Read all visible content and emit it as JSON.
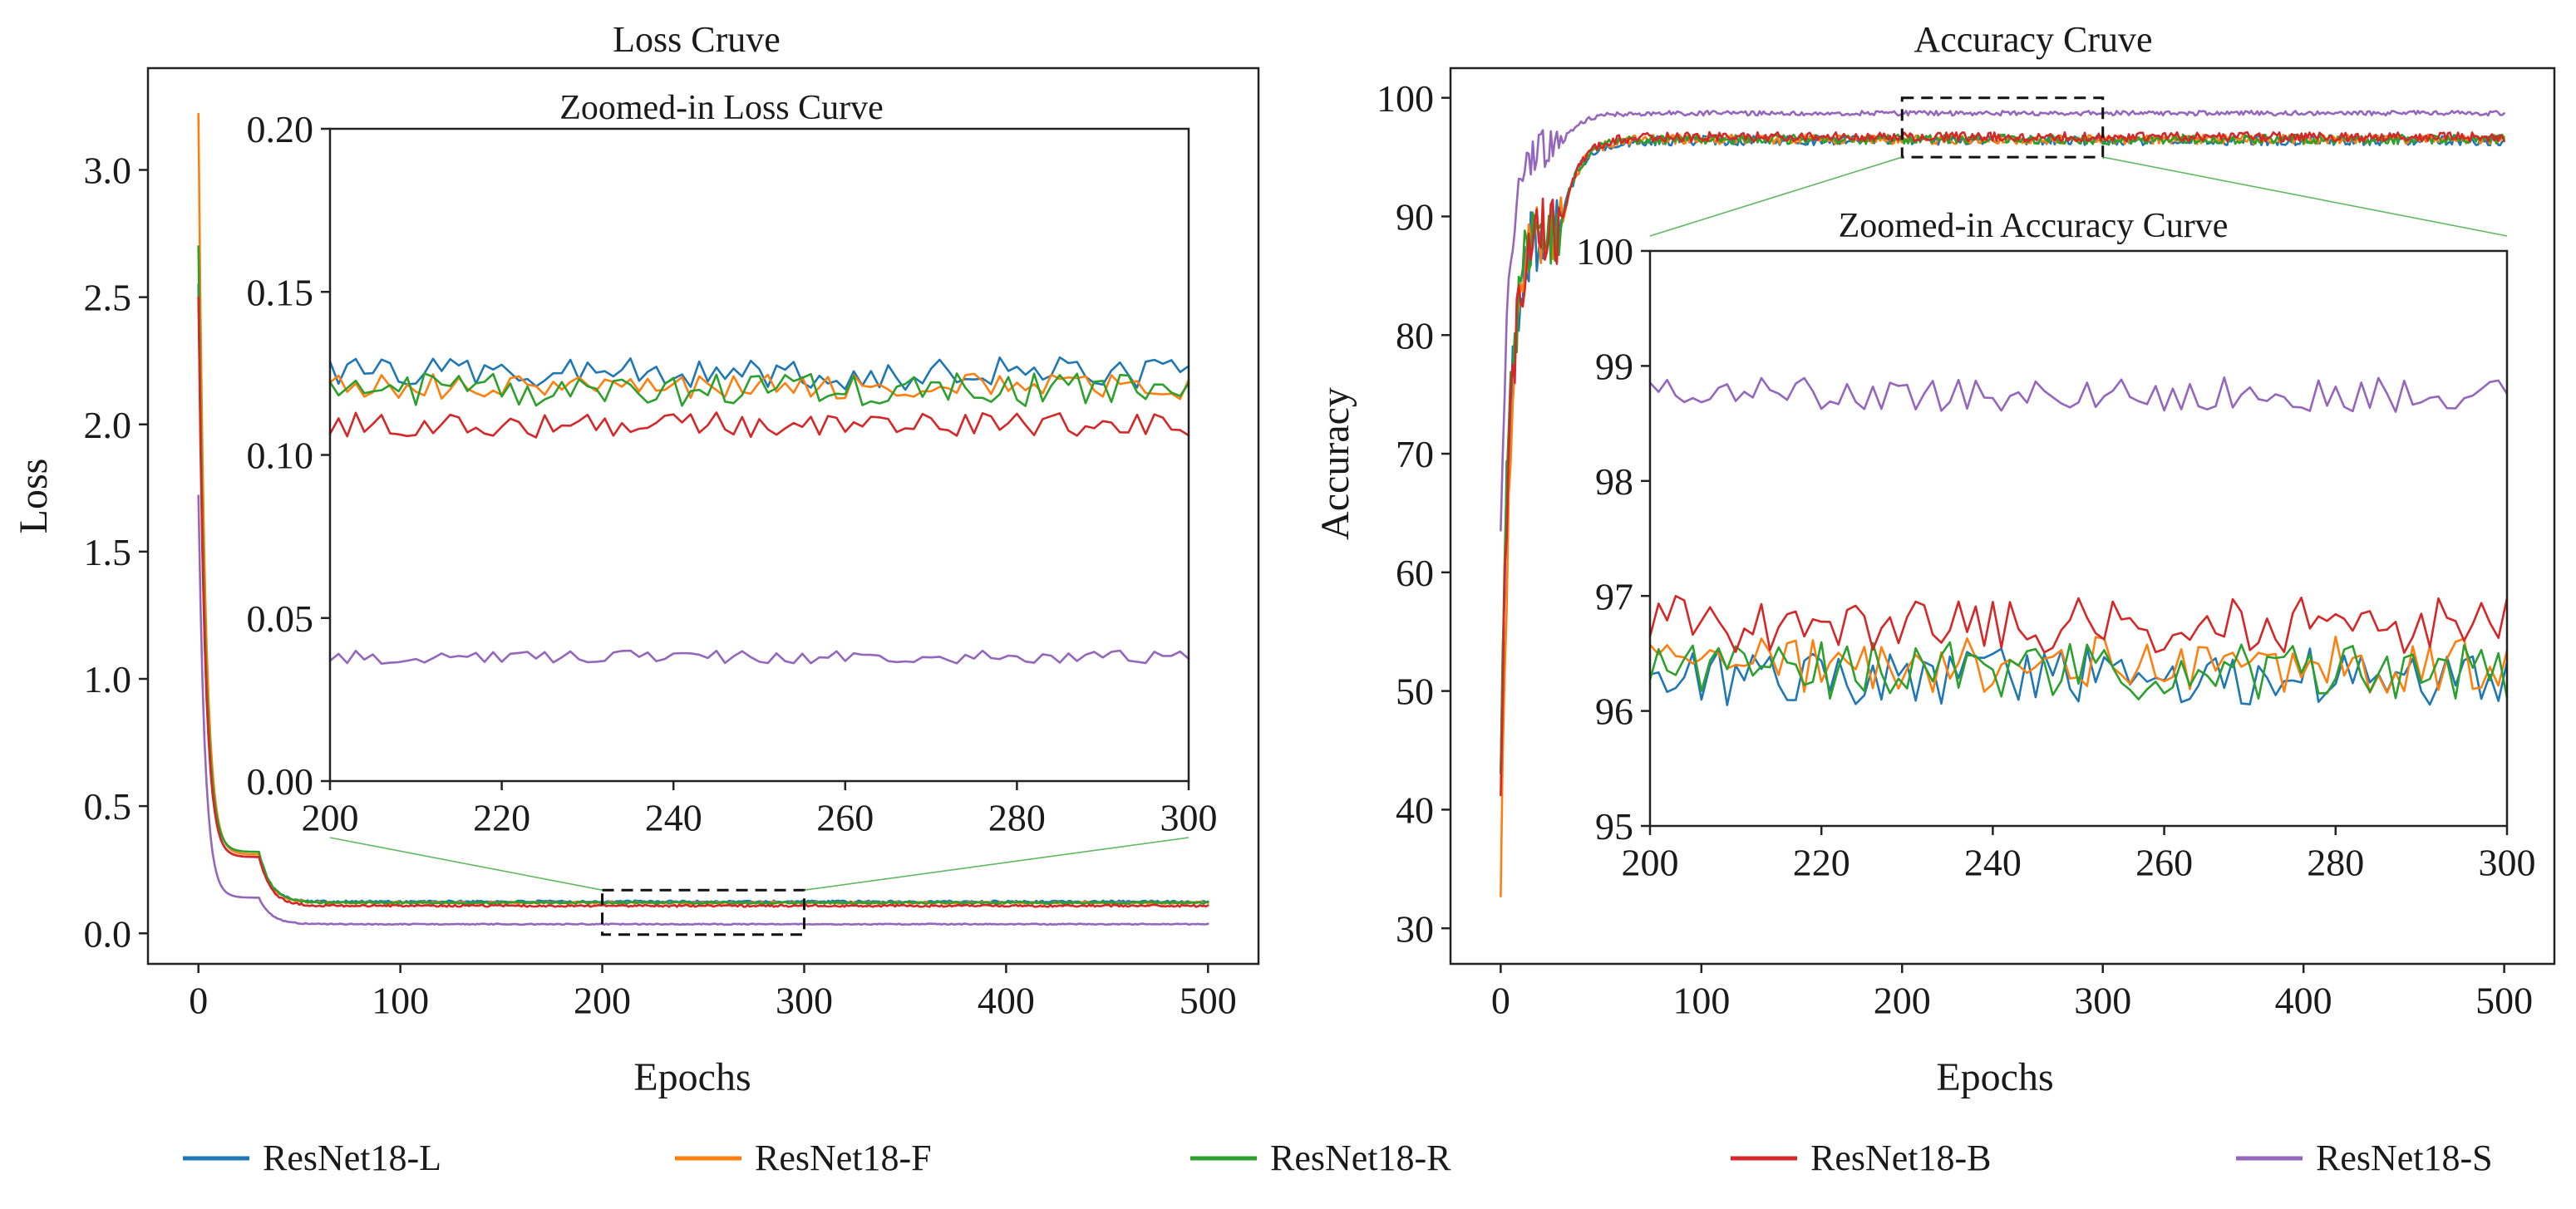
{
  "colors": {
    "ResNet18-L": "#1f77b4",
    "ResNet18-F": "#ff7f0e",
    "ResNet18-R": "#2ca02c",
    "ResNet18-B": "#d62728",
    "ResNet18-S": "#9467bd"
  },
  "legend": {
    "entries": [
      "ResNet18-L",
      "ResNet18-F",
      "ResNet18-R",
      "ResNet18-B",
      "ResNet18-S"
    ],
    "placement": "bottom-center"
  },
  "chart_data": [
    {
      "id": "loss",
      "type": "line",
      "title": "Loss Cruve",
      "xlabel": "Epochs",
      "ylabel": "Loss",
      "xlim": [
        -25,
        525
      ],
      "ylim": [
        -0.12,
        3.4
      ],
      "xticks": [
        0,
        100,
        200,
        300,
        400,
        500
      ],
      "yticks": [
        0.0,
        0.5,
        1.0,
        1.5,
        2.0,
        2.5,
        3.0
      ],
      "ytick_labels": [
        "0.0",
        "0.5",
        "1.0",
        "1.5",
        "2.0",
        "2.5",
        "3.0"
      ],
      "grid": false,
      "zoom_region": {
        "x": [
          200,
          300
        ],
        "y": [
          -0.005,
          0.17
        ]
      },
      "series": [
        {
          "name": "ResNet18-L",
          "start": 2.55,
          "knee": 0.3,
          "plateau": 0.125,
          "noise": 0.004
        },
        {
          "name": "ResNet18-F",
          "start": 3.22,
          "knee": 0.31,
          "plateau": 0.12,
          "noise": 0.004
        },
        {
          "name": "ResNet18-R",
          "start": 2.7,
          "knee": 0.32,
          "plateau": 0.12,
          "noise": 0.004
        },
        {
          "name": "ResNet18-B",
          "start": 2.5,
          "knee": 0.3,
          "plateau": 0.108,
          "noise": 0.004
        },
        {
          "name": "ResNet18-S",
          "start": 1.72,
          "knee": 0.14,
          "plateau": 0.036,
          "noise": 0.002
        }
      ],
      "inset": {
        "title": "Zoomed-in Loss Curve",
        "xlim": [
          200,
          300
        ],
        "ylim": [
          0.0,
          0.2
        ],
        "xticks": [
          200,
          220,
          240,
          260,
          280,
          300
        ],
        "yticks": [
          0.0,
          0.05,
          0.1,
          0.15,
          0.2
        ],
        "ytick_labels": [
          "0.00",
          "0.05",
          "0.10",
          "0.15",
          "0.20"
        ],
        "series": [
          {
            "name": "ResNet18-L",
            "level": 0.125,
            "noise": 0.005
          },
          {
            "name": "ResNet18-F",
            "level": 0.121,
            "noise": 0.004
          },
          {
            "name": "ResNet18-R",
            "level": 0.12,
            "noise": 0.005
          },
          {
            "name": "ResNet18-B",
            "level": 0.109,
            "noise": 0.004
          },
          {
            "name": "ResNet18-S",
            "level": 0.038,
            "noise": 0.002
          }
        ]
      }
    },
    {
      "id": "accuracy",
      "type": "line",
      "title": "Accuracy Cruve",
      "xlabel": "Epochs",
      "ylabel": "Accuracy",
      "xlim": [
        -25,
        525
      ],
      "ylim": [
        27,
        102.5
      ],
      "xticks": [
        0,
        100,
        200,
        300,
        400,
        500
      ],
      "yticks": [
        30,
        40,
        50,
        60,
        70,
        80,
        90,
        100
      ],
      "ytick_labels": [
        "30",
        "40",
        "50",
        "60",
        "70",
        "80",
        "90",
        "100"
      ],
      "grid": false,
      "zoom_region": {
        "x": [
          200,
          300
        ],
        "y": [
          95,
          100
        ]
      },
      "series": [
        {
          "name": "ResNet18-L",
          "start": 46,
          "knee": 89,
          "plateau": 96.4,
          "noise": 0.4
        },
        {
          "name": "ResNet18-F",
          "start": 30.5,
          "knee": 89,
          "plateau": 96.5,
          "noise": 0.4
        },
        {
          "name": "ResNet18-R",
          "start": 44,
          "knee": 89,
          "plateau": 96.5,
          "noise": 0.4
        },
        {
          "name": "ResNet18-B",
          "start": 41.5,
          "knee": 89,
          "plateau": 96.7,
          "noise": 0.4
        },
        {
          "name": "ResNet18-S",
          "start": 65,
          "knee": 96,
          "plateau": 98.7,
          "noise": 0.2
        }
      ],
      "inset": {
        "title": "Zoomed-in Accuracy Curve",
        "xlim": [
          200,
          300
        ],
        "ylim": [
          95,
          100
        ],
        "xticks": [
          200,
          220,
          240,
          260,
          280,
          300
        ],
        "yticks": [
          95,
          96,
          97,
          98,
          99,
          100
        ],
        "ytick_labels": [
          "95",
          "96",
          "97",
          "98",
          "99",
          "100"
        ],
        "series": [
          {
            "name": "ResNet18-L",
            "level": 96.3,
            "noise": 0.25
          },
          {
            "name": "ResNet18-F",
            "level": 96.4,
            "noise": 0.25
          },
          {
            "name": "ResNet18-R",
            "level": 96.35,
            "noise": 0.25
          },
          {
            "name": "ResNet18-B",
            "level": 96.75,
            "noise": 0.25
          },
          {
            "name": "ResNet18-S",
            "level": 98.75,
            "noise": 0.15
          }
        ]
      }
    }
  ]
}
